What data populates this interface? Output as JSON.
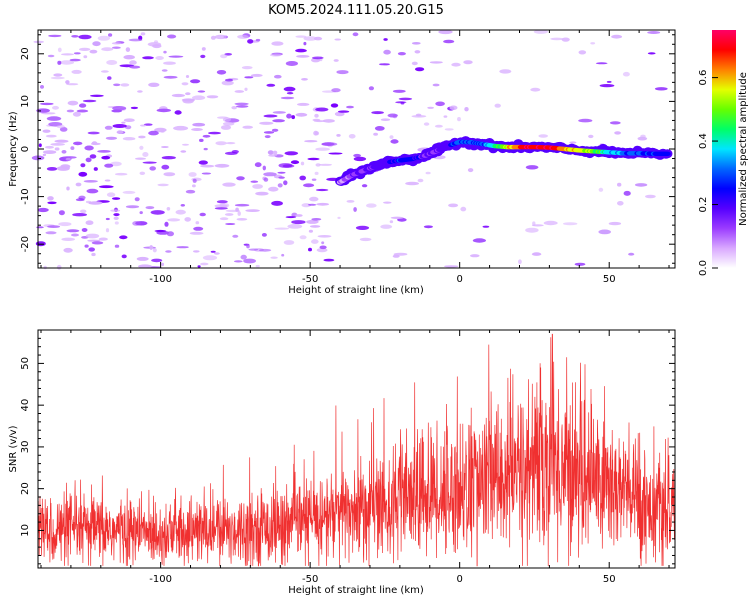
{
  "title": "KOM5.2024.111.05.20.G15",
  "chart_data": [
    {
      "type": "heatmap",
      "xlabel": "Height of straight line (km)",
      "ylabel": "Frequency (Hz)",
      "xlim": [
        -141,
        72
      ],
      "ylim": [
        -25,
        25
      ],
      "xticks": [
        -100,
        -50,
        0,
        50
      ],
      "yticks": [
        -20,
        -10,
        0,
        10,
        20
      ],
      "colorbar": {
        "label": "Normalized spectral amplitude",
        "range": [
          0.0,
          0.75
        ],
        "ticks": [
          "0.0",
          "0.2",
          "0.4",
          "0.6"
        ],
        "colors": [
          "#ffffff",
          "#d9a8ff",
          "#9b3cff",
          "#5500ff",
          "#0000ff",
          "#0066ff",
          "#00e5ff",
          "#00ff66",
          "#66ff00",
          "#e5ff00",
          "#ff8000",
          "#ff0000",
          "#ff0066"
        ]
      },
      "ridge": {
        "x": [
          -40,
          -36,
          -32,
          -28,
          -24,
          -20,
          -16,
          -12,
          -8,
          -4,
          0,
          4,
          8,
          12,
          16,
          20,
          25,
          30,
          35,
          40,
          45,
          50,
          55,
          60,
          65,
          70
        ],
        "freq": [
          -7,
          -5.5,
          -4.5,
          -3.6,
          -2.8,
          -2.4,
          -2.1,
          -1.5,
          -0.5,
          0.6,
          1.5,
          1.4,
          1.0,
          0.6,
          0.4,
          0.4,
          0.4,
          0.3,
          0.0,
          -0.3,
          -0.5,
          -0.7,
          -0.9,
          -0.9,
          -1.0,
          -1.0
        ],
        "amplitude": [
          0.08,
          0.12,
          0.15,
          0.18,
          0.22,
          0.26,
          0.24,
          0.18,
          0.14,
          0.2,
          0.32,
          0.28,
          0.3,
          0.42,
          0.55,
          0.68,
          0.7,
          0.72,
          0.62,
          0.58,
          0.5,
          0.38,
          0.3,
          0.28,
          0.26,
          0.25
        ]
      }
    },
    {
      "type": "line",
      "xlabel": "Height of straight line (km)",
      "ylabel": "SNR (v/v)",
      "xlim": [
        -141,
        72
      ],
      "ylim": [
        1,
        58
      ],
      "xticks": [
        -100,
        -50,
        0,
        50
      ],
      "yticks": [
        10,
        20,
        30,
        40,
        50
      ],
      "series": [
        {
          "color": "#f03030",
          "trend": {
            "x": [
              -141,
              -120,
              -100,
              -80,
              -60,
              -40,
              -20,
              0,
              10,
              20,
              30,
              40,
              50,
              60,
              72
            ],
            "y": [
              10,
              10,
              9.5,
              10,
              11,
              14,
              17,
              20,
              22,
              24,
              26,
              24,
              21,
              17,
              13
            ]
          },
          "peak": {
            "x": 31,
            "y": 57
          }
        }
      ]
    }
  ]
}
